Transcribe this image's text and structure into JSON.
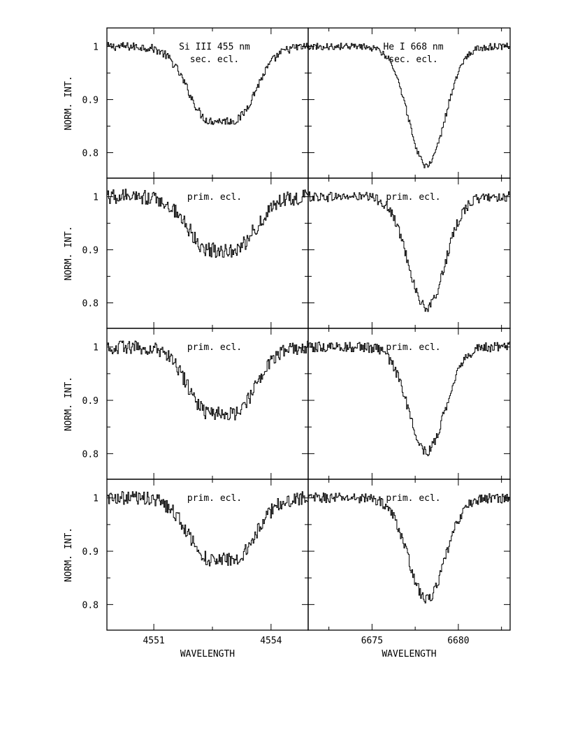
{
  "chart_data": {
    "type": "line",
    "layout": "4 rows x 2 columns, shared y axis per row, shared x axis per column",
    "ylabel": "NORM. INT.",
    "xlabel": "WAVELENGTH",
    "columns": [
      {
        "name": "left",
        "xlim": [
          4549.8,
          4554.95
        ],
        "xticks_labeled": [
          4551,
          4554
        ],
        "xlabel": "WAVELENGTH",
        "line": {
          "center": 4552.73,
          "sigma": 0.55,
          "flat": 0.6
        }
      },
      {
        "name": "right",
        "xlim": [
          6671.3,
          6683.0
        ],
        "xticks_labeled": [
          6675,
          6680
        ],
        "xlabel": "WAVELENGTH",
        "line": {
          "center": 6678.15,
          "sigma": 1.05,
          "flat": 0.0
        }
      }
    ],
    "rows": [
      {
        "ylim": [
          0.752,
          1.035
        ],
        "yticks": [
          0.8,
          0.9,
          1
        ],
        "panels": [
          {
            "annotation_lines": [
              "Si III 455 nm",
              "sec. ecl."
            ],
            "depth": 0.14,
            "noise": 0.005
          },
          {
            "annotation_lines": [
              "He I 668 nm",
              "sec. ecl."
            ],
            "depth": 0.225,
            "noise": 0.004
          }
        ]
      },
      {
        "ylim": [
          0.752,
          1.035
        ],
        "yticks": [
          0.8,
          0.9,
          1
        ],
        "panels": [
          {
            "annotation_lines": [
              "prim. ecl."
            ],
            "depth": 0.1,
            "noise": 0.009
          },
          {
            "annotation_lines": [
              "prim. ecl."
            ],
            "depth": 0.21,
            "noise": 0.006
          }
        ]
      },
      {
        "ylim": [
          0.752,
          1.035
        ],
        "yticks": [
          0.8,
          0.9,
          1
        ],
        "panels": [
          {
            "annotation_lines": [
              "prim. ecl."
            ],
            "depth": 0.125,
            "noise": 0.008
          },
          {
            "annotation_lines": [
              "prim. ecl."
            ],
            "depth": 0.195,
            "noise": 0.006
          }
        ]
      },
      {
        "ylim": [
          0.752,
          1.035
        ],
        "yticks": [
          0.8,
          0.9,
          1
        ],
        "panels": [
          {
            "annotation_lines": [
              "prim. ecl."
            ],
            "depth": 0.115,
            "noise": 0.008
          },
          {
            "annotation_lines": [
              "prim. ecl."
            ],
            "depth": 0.19,
            "noise": 0.006
          }
        ]
      }
    ]
  }
}
